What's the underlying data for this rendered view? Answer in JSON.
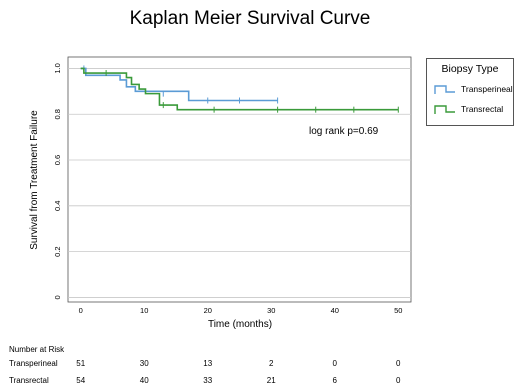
{
  "chart_data": {
    "type": "line",
    "subtype": "kaplan-meier step curve",
    "title": "Kaplan Meier Survival Curve",
    "xlabel": "Time (months)",
    "ylabel": "Survival from Treatment Failure",
    "xlim": [
      -2,
      52
    ],
    "ylim": [
      -0.02,
      1.05
    ],
    "xticks": [
      0,
      10,
      20,
      30,
      40,
      50
    ],
    "xtick_labels": [
      "0",
      "10",
      "20",
      "30",
      "40",
      "50"
    ],
    "yticks": [
      0,
      0.2,
      0.4,
      0.6,
      0.8,
      1.0
    ],
    "ytick_labels": [
      "0",
      "0.2",
      "0.4",
      "0.6",
      "0.8",
      "1.0"
    ],
    "grid": "horizontal",
    "annotation": "log rank p=0.69",
    "legend": {
      "title": "Biopsy Type",
      "placement": "right"
    },
    "series": [
      {
        "name": "Transperineal",
        "color": "#5b9bd5",
        "steps": [
          [
            0,
            1.0
          ],
          [
            0.8,
            0.97
          ],
          [
            6.2,
            0.95
          ],
          [
            7.2,
            0.92
          ],
          [
            8.6,
            0.9
          ],
          [
            17,
            0.86
          ],
          [
            31,
            0.86
          ]
        ],
        "censored": [
          [
            0.5,
            1.0
          ],
          [
            13,
            0.89
          ],
          [
            20,
            0.86
          ],
          [
            25,
            0.86
          ],
          [
            31,
            0.86
          ]
        ]
      },
      {
        "name": "Transrectal",
        "color": "#3a9a3a",
        "steps": [
          [
            0,
            1.0
          ],
          [
            0.5,
            0.98
          ],
          [
            7.2,
            0.96
          ],
          [
            8,
            0.93
          ],
          [
            9.2,
            0.91
          ],
          [
            10.2,
            0.89
          ],
          [
            12.4,
            0.84
          ],
          [
            15.2,
            0.82
          ],
          [
            50,
            0.82
          ]
        ],
        "censored": [
          [
            4,
            0.98
          ],
          [
            13,
            0.84
          ],
          [
            21,
            0.82
          ],
          [
            31,
            0.82
          ],
          [
            37,
            0.82
          ],
          [
            43,
            0.82
          ],
          [
            50,
            0.82
          ]
        ]
      }
    ],
    "risk_table": {
      "heading": "Number at Risk",
      "times": [
        0,
        10,
        20,
        30,
        40,
        50
      ],
      "rows": [
        {
          "label": "Transperineal",
          "values": [
            "51",
            "30",
            "13",
            "2",
            "0",
            "0"
          ]
        },
        {
          "label": "Transrectal",
          "values": [
            "54",
            "40",
            "33",
            "21",
            "6",
            "0"
          ]
        }
      ]
    }
  }
}
